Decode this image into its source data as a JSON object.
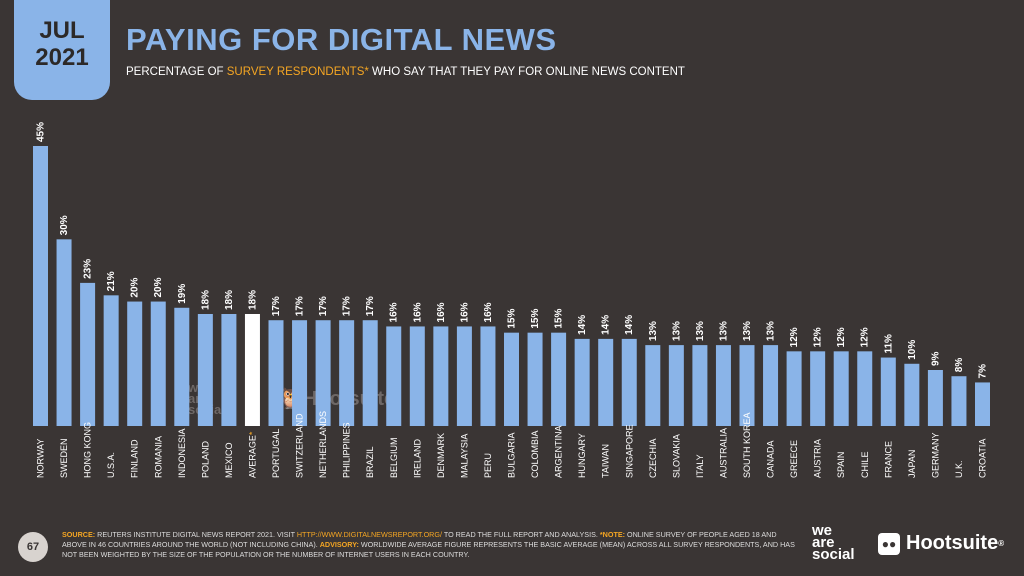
{
  "header": {
    "month": "JUL",
    "year": "2021",
    "title": "PAYING FOR DIGITAL NEWS",
    "subtitle_pre": "PERCENTAGE OF ",
    "subtitle_highlight": "SURVEY RESPONDENTS*",
    "subtitle_post": " WHO SAY THAT THEY PAY FOR ONLINE NEWS CONTENT"
  },
  "colors": {
    "bar": "#8ab4e8",
    "highlight_bar": "#ffffff",
    "background": "#3a3534",
    "accent": "#f5a623"
  },
  "chart_data": {
    "type": "bar",
    "title": "PAYING FOR DIGITAL NEWS",
    "categories": [
      "NORWAY",
      "SWEDEN",
      "HONG KONG",
      "U.S.A.",
      "FINLAND",
      "ROMANIA",
      "INDONESIA",
      "POLAND",
      "MEXICO",
      "AVERAGE",
      "PORTUGAL",
      "SWITZERLAND",
      "NETHERLANDS",
      "PHILIPPINES",
      "BRAZIL",
      "BELGIUM",
      "IRELAND",
      "DENMARK",
      "MALAYSIA",
      "PERU",
      "BULGARIA",
      "COLOMBIA",
      "ARGENTINA",
      "HUNGARY",
      "TAIWAN",
      "SINGAPORE",
      "CZECHIA",
      "SLOVAKIA",
      "ITALY",
      "AUSTRALIA",
      "SOUTH KOREA",
      "CANADA",
      "GREECE",
      "AUSTRIA",
      "SPAIN",
      "CHILE",
      "FRANCE",
      "JAPAN",
      "GERMANY",
      "U.K.",
      "CROATIA"
    ],
    "values": [
      45,
      30,
      23,
      21,
      20,
      20,
      19,
      18,
      18,
      18,
      17,
      17,
      17,
      17,
      17,
      16,
      16,
      16,
      16,
      16,
      15,
      15,
      15,
      14,
      14,
      14,
      13,
      13,
      13,
      13,
      13,
      13,
      12,
      12,
      12,
      12,
      11,
      10,
      9,
      8,
      7
    ],
    "value_labels": [
      "45%",
      "30%",
      "23%",
      "21%",
      "20%",
      "20%",
      "19%",
      "18%",
      "18%",
      "18%",
      "17%",
      "17%",
      "17%",
      "17%",
      "17%",
      "16%",
      "16%",
      "16%",
      "16%",
      "16%",
      "15%",
      "15%",
      "15%",
      "14%",
      "14%",
      "14%",
      "13%",
      "13%",
      "13%",
      "13%",
      "13%",
      "13%",
      "12%",
      "12%",
      "12%",
      "12%",
      "11%",
      "10%",
      "9%",
      "8%",
      "7%"
    ],
    "highlight_index": 9,
    "highlight_marker": "*",
    "ylim": [
      0,
      45
    ],
    "xlabel": "",
    "ylabel": ""
  },
  "footer": {
    "page_number": "67",
    "source_label": "SOURCE:",
    "source_text": " REUTERS INSTITUTE DIGITAL NEWS REPORT 2021. VISIT ",
    "source_link": "HTTP://WWW.DIGITALNEWSREPORT.ORG/",
    "source_text2": " TO READ THE FULL REPORT AND ANALYSIS. ",
    "note_label": "*NOTE:",
    "note_text": " ONLINE SURVEY OF PEOPLE AGED 18 AND ABOVE IN 46 COUNTRIES AROUND THE WORLD (NOT INCLUDING CHINA). ",
    "advisory_label": "ADVISORY:",
    "advisory_text": " WORLDWIDE AVERAGE FIGURE REPRESENTS THE BASIC AVERAGE (MEAN) ACROSS ALL SURVEY RESPONDENTS, AND HAS NOT BEEN WEIGHTED BY THE SIZE OF THE POPULATION OR THE NUMBER OF INTERNET USERS IN EACH COUNTRY."
  },
  "logos": {
    "we": "we",
    "are": "are",
    "social": "social",
    "hootsuite": "Hootsuite",
    "hootsuite_registered": "®"
  }
}
